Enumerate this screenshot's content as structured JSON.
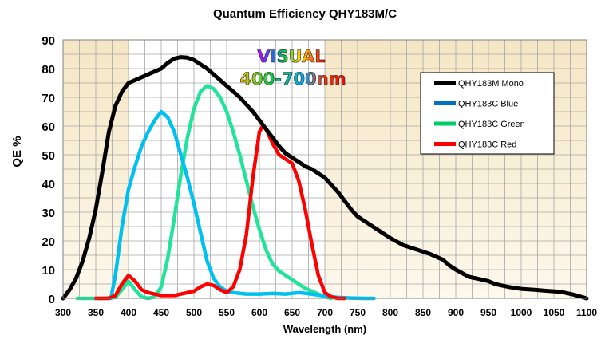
{
  "chart_data": {
    "type": "line",
    "title": "Quantum Efficiency QHY183M/C",
    "xlabel": "Wavelength (nm)",
    "ylabel": "QE %",
    "xlim": [
      300,
      1100
    ],
    "ylim": [
      0,
      90
    ],
    "xticks": [
      300,
      350,
      400,
      450,
      500,
      550,
      600,
      650,
      700,
      750,
      800,
      850,
      900,
      950,
      1000,
      1050,
      1100
    ],
    "yticks": [
      0,
      10,
      20,
      30,
      40,
      50,
      60,
      70,
      80,
      90
    ],
    "grid": true,
    "legend_position": "right",
    "annotation": {
      "line1": "VISUAL",
      "line2": "400-700nm",
      "band": [
        400,
        700
      ]
    },
    "series": [
      {
        "name": "QHY183M Mono",
        "color": "#000000",
        "points": [
          [
            300,
            0
          ],
          [
            310,
            3
          ],
          [
            320,
            7
          ],
          [
            330,
            13
          ],
          [
            340,
            21
          ],
          [
            350,
            31
          ],
          [
            360,
            44
          ],
          [
            370,
            58
          ],
          [
            380,
            67
          ],
          [
            390,
            72
          ],
          [
            400,
            75
          ],
          [
            420,
            77
          ],
          [
            440,
            79
          ],
          [
            450,
            80
          ],
          [
            460,
            82
          ],
          [
            470,
            83.5
          ],
          [
            480,
            84
          ],
          [
            490,
            83.8
          ],
          [
            500,
            83
          ],
          [
            510,
            81.5
          ],
          [
            520,
            80
          ],
          [
            530,
            78
          ],
          [
            540,
            76
          ],
          [
            550,
            74
          ],
          [
            560,
            72
          ],
          [
            570,
            70
          ],
          [
            580,
            67.5
          ],
          [
            590,
            65
          ],
          [
            600,
            62
          ],
          [
            610,
            59
          ],
          [
            620,
            56
          ],
          [
            630,
            53
          ],
          [
            640,
            50.5
          ],
          [
            650,
            49
          ],
          [
            660,
            47.5
          ],
          [
            670,
            46
          ],
          [
            680,
            45
          ],
          [
            690,
            43.5
          ],
          [
            700,
            42
          ],
          [
            710,
            39.5
          ],
          [
            720,
            37
          ],
          [
            730,
            34
          ],
          [
            740,
            31
          ],
          [
            750,
            28.5
          ],
          [
            760,
            27
          ],
          [
            770,
            25.5
          ],
          [
            780,
            24
          ],
          [
            790,
            22.5
          ],
          [
            800,
            21
          ],
          [
            820,
            18.5
          ],
          [
            840,
            17
          ],
          [
            860,
            15.5
          ],
          [
            880,
            13.5
          ],
          [
            890,
            11.5
          ],
          [
            900,
            10
          ],
          [
            920,
            7.5
          ],
          [
            940,
            6.5
          ],
          [
            950,
            6
          ],
          [
            960,
            5
          ],
          [
            980,
            4
          ],
          [
            1000,
            3.3
          ],
          [
            1020,
            3
          ],
          [
            1040,
            2.6
          ],
          [
            1060,
            2.3
          ],
          [
            1080,
            1.3
          ],
          [
            1100,
            0
          ]
        ]
      },
      {
        "name": "QHY183C Blue",
        "color": "#0070c0",
        "points": [
          [
            373,
            0
          ],
          [
            380,
            8
          ],
          [
            390,
            25
          ],
          [
            400,
            38
          ],
          [
            410,
            46
          ],
          [
            420,
            53
          ],
          [
            430,
            58
          ],
          [
            440,
            62
          ],
          [
            450,
            65
          ],
          [
            460,
            63
          ],
          [
            470,
            58
          ],
          [
            480,
            50
          ],
          [
            490,
            42
          ],
          [
            500,
            33
          ],
          [
            510,
            23
          ],
          [
            520,
            13
          ],
          [
            530,
            7
          ],
          [
            540,
            4
          ],
          [
            550,
            2.5
          ],
          [
            560,
            2
          ],
          [
            580,
            1.5
          ],
          [
            600,
            1.5
          ],
          [
            620,
            1.7
          ],
          [
            640,
            1.5
          ],
          [
            660,
            2
          ],
          [
            680,
            1.5
          ],
          [
            700,
            0.8
          ],
          [
            720,
            0.3
          ],
          [
            740,
            0.1
          ],
          [
            760,
            0
          ],
          [
            775,
            0
          ]
        ]
      },
      {
        "name": "QHY183C Green",
        "color": "#00cc66",
        "points": [
          [
            322,
            0
          ],
          [
            340,
            0
          ],
          [
            360,
            0
          ],
          [
            380,
            0.3
          ],
          [
            390,
            3
          ],
          [
            400,
            6
          ],
          [
            410,
            3
          ],
          [
            420,
            0.5
          ],
          [
            430,
            0
          ],
          [
            440,
            0.5
          ],
          [
            450,
            4
          ],
          [
            460,
            14
          ],
          [
            470,
            28
          ],
          [
            480,
            43
          ],
          [
            490,
            56
          ],
          [
            500,
            66
          ],
          [
            510,
            72
          ],
          [
            520,
            74
          ],
          [
            530,
            73
          ],
          [
            540,
            70
          ],
          [
            550,
            65
          ],
          [
            560,
            58
          ],
          [
            570,
            50
          ],
          [
            580,
            41
          ],
          [
            590,
            32
          ],
          [
            600,
            24
          ],
          [
            610,
            17
          ],
          [
            620,
            12
          ],
          [
            630,
            9.5
          ],
          [
            640,
            8
          ],
          [
            650,
            6.5
          ],
          [
            660,
            5
          ],
          [
            670,
            3.5
          ],
          [
            680,
            2.5
          ],
          [
            690,
            1.5
          ],
          [
            700,
            0.5
          ],
          [
            710,
            0
          ]
        ]
      },
      {
        "name": "QHY183C Red",
        "color": "#ff0000",
        "points": [
          [
            350,
            0
          ],
          [
            370,
            0
          ],
          [
            380,
            1
          ],
          [
            390,
            5
          ],
          [
            400,
            8
          ],
          [
            410,
            6
          ],
          [
            420,
            3
          ],
          [
            430,
            2
          ],
          [
            450,
            1
          ],
          [
            470,
            1
          ],
          [
            490,
            2
          ],
          [
            500,
            2.5
          ],
          [
            510,
            4
          ],
          [
            520,
            5
          ],
          [
            530,
            4.5
          ],
          [
            540,
            3
          ],
          [
            550,
            2
          ],
          [
            560,
            4
          ],
          [
            570,
            10
          ],
          [
            580,
            22
          ],
          [
            590,
            42
          ],
          [
            600,
            58
          ],
          [
            605,
            60
          ],
          [
            610,
            59
          ],
          [
            620,
            54
          ],
          [
            630,
            50
          ],
          [
            650,
            47
          ],
          [
            660,
            41
          ],
          [
            670,
            31
          ],
          [
            680,
            19
          ],
          [
            690,
            8
          ],
          [
            700,
            2
          ],
          [
            710,
            0.5
          ],
          [
            720,
            0
          ],
          [
            730,
            0
          ]
        ]
      }
    ]
  }
}
